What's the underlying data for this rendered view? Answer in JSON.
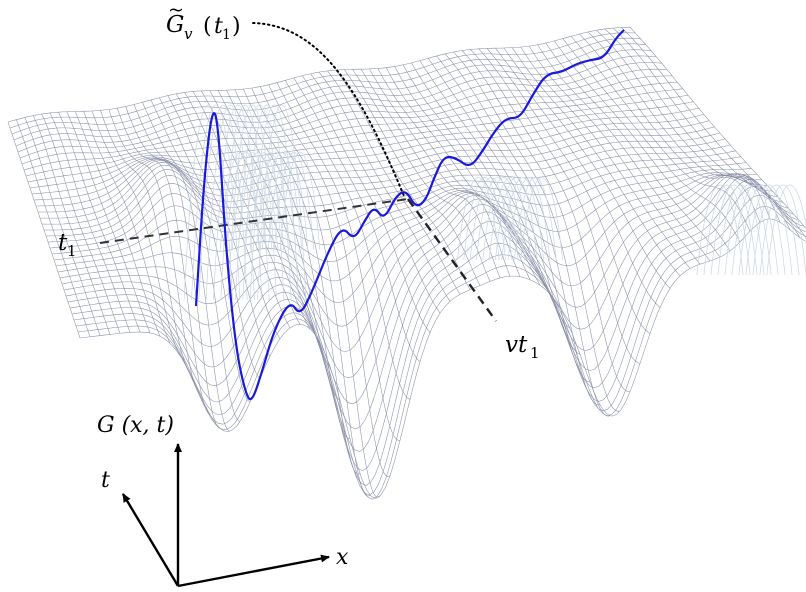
{
  "labels": {
    "gv_label": "G̃v (t1)",
    "gv_symbol": "G",
    "gv_tilde": "~",
    "gv_sub": "v",
    "gv_arg_open": " (",
    "gv_arg_t": "t",
    "gv_arg_sub": "1",
    "gv_arg_close": ")",
    "t1_label": "t1",
    "t1_main": "t",
    "t1_sub": "1",
    "vt1_label": "vt1",
    "vt1_main": "vt",
    "vt1_sub": "1",
    "G_axis_label": "G (x, t)",
    "t_axis_label": "t",
    "x_axis_label": "x"
  },
  "colors": {
    "mesh": "#8a8fa8",
    "mesh_light": "#c9d6e2",
    "curve": "#1a1adc",
    "dashed": "#333333",
    "dotted": "#000000",
    "axis": "#000000"
  }
}
